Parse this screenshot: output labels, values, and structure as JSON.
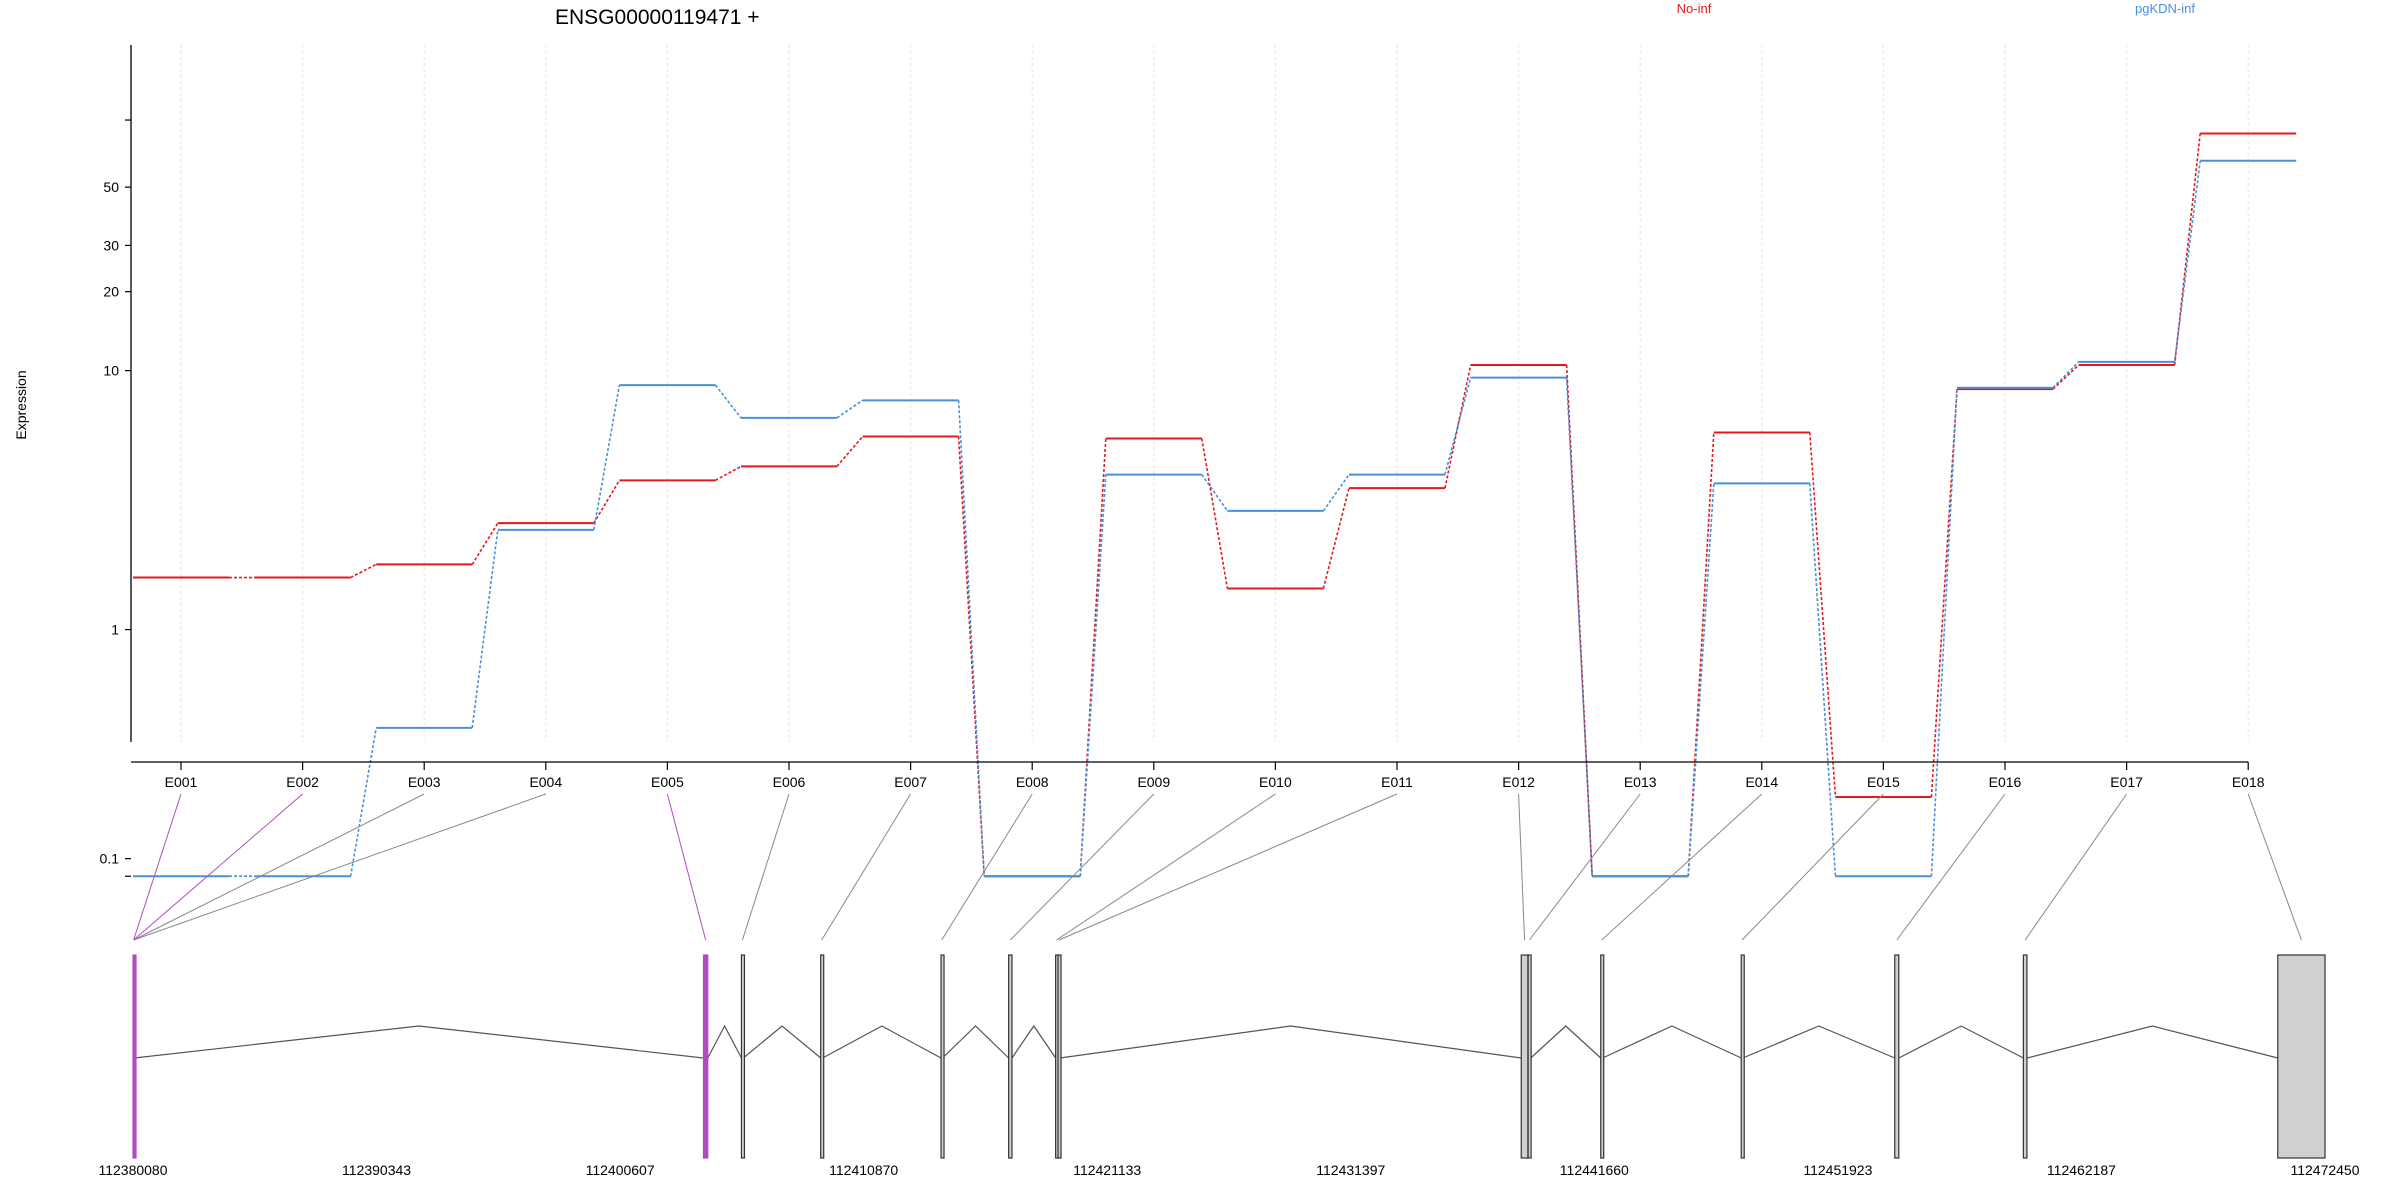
{
  "chart_data": {
    "type": "line",
    "title": "ENSG00000119471 +",
    "ylabel": "Expression",
    "yscale": "log",
    "yticks": [
      0.1,
      1,
      10,
      20,
      30,
      50
    ],
    "grid": "vertical dashed lines at each exon",
    "categories": [
      "E001",
      "E002",
      "E003",
      "E004",
      "E005",
      "E006",
      "E007",
      "E008",
      "E009",
      "E010",
      "E011",
      "E012",
      "E013",
      "E014",
      "E015",
      "E016",
      "E017",
      "E018"
    ],
    "series": [
      {
        "name": "No-inf",
        "color": "#e31a1c",
        "values": [
          1.6,
          1.6,
          1.8,
          2.6,
          3.8,
          4.3,
          5.6,
          0.08,
          5.5,
          1.45,
          3.55,
          10.5,
          0.08,
          5.8,
          0.2,
          8.5,
          10.5,
          80
        ]
      },
      {
        "name": "pgKDN-inf",
        "color": "#4a90d9",
        "values": [
          0.08,
          0.08,
          0.4,
          2.45,
          8.8,
          6.6,
          7.7,
          0.08,
          4.0,
          2.9,
          4.0,
          9.4,
          0.08,
          3.7,
          0.08,
          8.6,
          10.8,
          63
        ]
      }
    ],
    "gene_model": {
      "start": 112380080,
      "end": 112472450,
      "axis_ticks": [
        112380080,
        112390343,
        112400607,
        112410870,
        112421133,
        112431397,
        112441660,
        112451923,
        112462187,
        112472450
      ],
      "tick_labels": [
        "112380080",
        "112390343",
        "112400607",
        "112410870",
        "112421133",
        "112431397",
        "112441660",
        "112451923",
        "112462187",
        "112472450"
      ],
      "highlight_color": "#b24bc2",
      "exons": [
        {
          "id": "E001",
          "start": 112380080,
          "end": 112380130,
          "highlight": true
        },
        {
          "id": "E002",
          "start": 112380080,
          "end": 112380130,
          "highlight": true
        },
        {
          "id": "E003",
          "start": 112380080,
          "end": 112380130,
          "highlight": false
        },
        {
          "id": "E004",
          "start": 112380080,
          "end": 112380130,
          "highlight": false
        },
        {
          "id": "E005",
          "start": 112404120,
          "end": 112404300,
          "highlight": true
        },
        {
          "id": "E006",
          "start": 112405720,
          "end": 112405800,
          "highlight": false
        },
        {
          "id": "E007",
          "start": 112409060,
          "end": 112409140,
          "highlight": false
        },
        {
          "id": "E008",
          "start": 112414130,
          "end": 112414190,
          "highlight": false
        },
        {
          "id": "E009",
          "start": 112416980,
          "end": 112417120,
          "highlight": false
        },
        {
          "id": "E010",
          "start": 112418960,
          "end": 112419040,
          "highlight": false
        },
        {
          "id": "E011",
          "start": 112419060,
          "end": 112419140,
          "highlight": false
        },
        {
          "id": "E012",
          "start": 112438580,
          "end": 112438860,
          "highlight": false
        },
        {
          "id": "E013",
          "start": 112438870,
          "end": 112438980,
          "highlight": false
        },
        {
          "id": "E014",
          "start": 112441930,
          "end": 112442010,
          "highlight": false
        },
        {
          "id": "E015",
          "start": 112447850,
          "end": 112447920,
          "highlight": false
        },
        {
          "id": "E016",
          "start": 112454320,
          "end": 112454490,
          "highlight": false
        },
        {
          "id": "E017",
          "start": 112459740,
          "end": 112459890,
          "highlight": false
        },
        {
          "id": "E018",
          "start": 112470460,
          "end": 112472450,
          "highlight": false
        }
      ]
    }
  }
}
